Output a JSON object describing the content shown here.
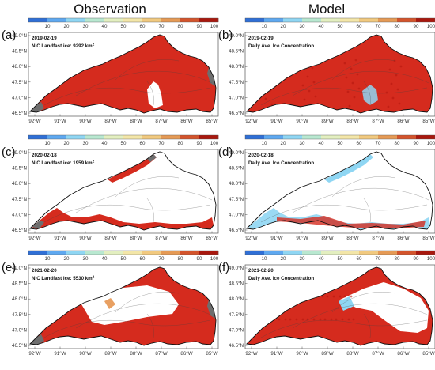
{
  "columns": [
    {
      "title": "Observation"
    },
    {
      "title": "Model"
    }
  ],
  "colorbar": {
    "ticks": [
      "10",
      "20",
      "30",
      "40",
      "50",
      "60",
      "70",
      "80",
      "90",
      "100"
    ],
    "colors": [
      "#2f6fd6",
      "#5ea8f0",
      "#8fd6f3",
      "#b8e8d0",
      "#e3efc0",
      "#f3e6a8",
      "#f1c97f",
      "#e59a55",
      "#d3542c",
      "#a8180e"
    ]
  },
  "lat_ticks": [
    "49.0°N",
    "48.5°N",
    "48.0°N",
    "47.5°N",
    "47.0°N",
    "46.5°N"
  ],
  "lon_ticks": [
    "92°W",
    "91°W",
    "90°W",
    "89°W",
    "88°W",
    "87°W",
    "86°W",
    "85°W"
  ],
  "panels": [
    {
      "letter": "(a)",
      "date": "2019-02-19",
      "note": "NIC Landfast ice: 9292 km",
      "sup": "2",
      "source": "observation",
      "coverage": "full"
    },
    {
      "letter": "(b)",
      "date": "2019-02-19",
      "note": "Daily Ave. Ice Concentration",
      "sup": "",
      "source": "model",
      "coverage": "full"
    },
    {
      "letter": "(c)",
      "date": "2020-02-18",
      "note": "NIC Landfast ice: 1959 km",
      "sup": "2",
      "source": "observation",
      "coverage": "coastal"
    },
    {
      "letter": "(d)",
      "date": "2020-02-18",
      "note": "Daily Ave. Ice Concentration",
      "sup": "",
      "source": "model",
      "coverage": "coastal"
    },
    {
      "letter": "(e)",
      "date": "2021-02-20",
      "note": "NIC Landfast ice: 5530 km",
      "sup": "2",
      "source": "observation",
      "coverage": "partial"
    },
    {
      "letter": "(f)",
      "date": "2021-02-20",
      "note": "Daily Ave. Ice Concentration",
      "sup": "",
      "source": "model",
      "coverage": "partial"
    }
  ],
  "colors": {
    "ice_high": "#d52b1e",
    "ice_dark": "#b5170f",
    "landfast_grey": "#6e6e6e",
    "ice_mid": "#e8a062",
    "ice_low": "#8fd6f3",
    "open_water": "#ffffff",
    "outline": "#111111"
  }
}
